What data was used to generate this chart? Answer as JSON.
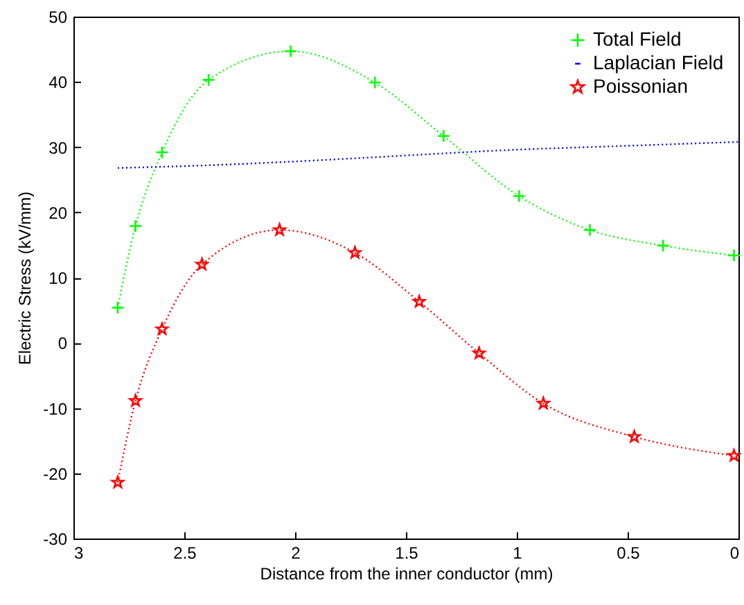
{
  "chart_data": {
    "type": "line",
    "xlabel": "Distance from the inner conductor (mm)",
    "ylabel": "Electric Stress (kV/mm)",
    "xlim": [
      3,
      0
    ],
    "xticks": [
      3,
      2.5,
      2,
      1.5,
      1,
      0.5,
      0
    ],
    "ylim": [
      -30,
      50
    ],
    "yticks": [
      -30,
      -20,
      -10,
      0,
      10,
      20,
      30,
      40,
      50
    ],
    "grid": false,
    "legend": "top right",
    "line_style": "dotted",
    "series": [
      {
        "name": "Total Field",
        "color": "#00ff00",
        "marker": "cross",
        "x": [
          2.8,
          2.72,
          2.6,
          2.39,
          2.02,
          1.64,
          1.33,
          0.99,
          0.67,
          0.34,
          0.02
        ],
        "values": [
          5.4,
          17.9,
          29.2,
          40.3,
          44.7,
          39.9,
          31.7,
          22.5,
          17.3,
          14.9,
          13.4
        ]
      },
      {
        "name": "Laplacian Field",
        "color": "#0000ff",
        "marker": "none",
        "x": [
          2.8,
          2.4,
          2.0,
          1.72,
          1.0,
          0.5,
          0
        ],
        "values": [
          26.8,
          27.2,
          27.8,
          28.3,
          29.6,
          30.2,
          30.8
        ]
      },
      {
        "name": "Poissonian",
        "color": "#ff0000",
        "marker": "star",
        "x": [
          2.8,
          2.72,
          2.6,
          2.42,
          2.07,
          1.73,
          1.44,
          1.17,
          0.88,
          0.47,
          0.02
        ],
        "values": [
          -21.4,
          -8.9,
          2.1,
          12.0,
          17.3,
          13.8,
          6.3,
          -1.6,
          -9.3,
          -14.4,
          -17.3
        ]
      }
    ]
  }
}
